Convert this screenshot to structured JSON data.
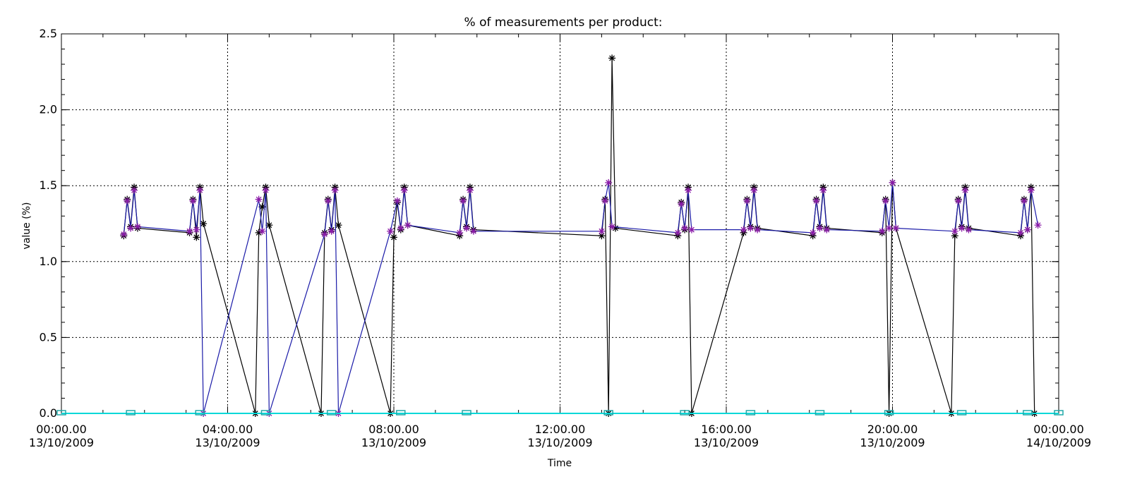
{
  "chart_data": {
    "type": "line",
    "title": "% of measurements per product:",
    "xlabel": "Time",
    "ylabel": "value (%)",
    "xlim": [
      "13/10/2009 00:00",
      "14/10/2009 00:00"
    ],
    "ylim": [
      0,
      2.5
    ],
    "grid": "dotted, at labelled ticks",
    "x_ticks": [
      {
        "time": "00:00.00",
        "date": "13/10/2009"
      },
      {
        "time": "04:00.00",
        "date": "13/10/2009"
      },
      {
        "time": "08:00.00",
        "date": "13/10/2009"
      },
      {
        "time": "12:00.00",
        "date": "13/10/2009"
      },
      {
        "time": "16:00.00",
        "date": "13/10/2009"
      },
      {
        "time": "20:00.00",
        "date": "13/10/2009"
      },
      {
        "time": "00:00.00",
        "date": "14/10/2009"
      }
    ],
    "y_ticks": [
      "0.0",
      "0.5",
      "1.0",
      "1.5",
      "2.0",
      "2.5"
    ],
    "series": [
      {
        "color": "#000000",
        "marker": "asterisk",
        "points": [
          [
            "13/10/2009 01:30",
            1.17
          ],
          [
            "13/10/2009 01:35",
            1.41
          ],
          [
            "13/10/2009 01:40",
            1.23
          ],
          [
            "13/10/2009 01:45",
            1.49
          ],
          [
            "13/10/2009 01:50",
            1.22
          ],
          [
            "13/10/2009 03:05",
            1.19
          ],
          [
            "13/10/2009 03:10",
            1.41
          ],
          [
            "13/10/2009 03:15",
            1.16
          ],
          [
            "13/10/2009 03:20",
            1.49
          ],
          [
            "13/10/2009 03:25",
            1.25
          ],
          [
            "13/10/2009 04:40",
            0.0
          ],
          [
            "13/10/2009 04:45",
            1.19
          ],
          [
            "13/10/2009 04:50",
            1.36
          ],
          [
            "13/10/2009 04:55",
            1.49
          ],
          [
            "13/10/2009 05:00",
            1.24
          ],
          [
            "13/10/2009 06:15",
            0.0
          ],
          [
            "13/10/2009 06:20",
            1.19
          ],
          [
            "13/10/2009 06:25",
            1.41
          ],
          [
            "13/10/2009 06:30",
            1.21
          ],
          [
            "13/10/2009 06:35",
            1.49
          ],
          [
            "13/10/2009 06:40",
            1.24
          ],
          [
            "13/10/2009 07:55",
            0.0
          ],
          [
            "13/10/2009 08:00",
            1.16
          ],
          [
            "13/10/2009 08:05",
            1.39
          ],
          [
            "13/10/2009 08:10",
            1.21
          ],
          [
            "13/10/2009 08:15",
            1.49
          ],
          [
            "13/10/2009 08:20",
            1.24
          ],
          [
            "13/10/2009 09:35",
            1.17
          ],
          [
            "13/10/2009 09:40",
            1.41
          ],
          [
            "13/10/2009 09:45",
            1.23
          ],
          [
            "13/10/2009 09:50",
            1.49
          ],
          [
            "13/10/2009 09:55",
            1.21
          ],
          [
            "13/10/2009 13:00",
            1.17
          ],
          [
            "13/10/2009 13:05",
            1.41
          ],
          [
            "13/10/2009 13:10",
            0.0
          ],
          [
            "13/10/2009 13:15",
            2.34
          ],
          [
            "13/10/2009 13:20",
            1.22
          ],
          [
            "13/10/2009 14:50",
            1.17
          ],
          [
            "13/10/2009 14:55",
            1.39
          ],
          [
            "13/10/2009 15:00",
            1.21
          ],
          [
            "13/10/2009 15:05",
            1.49
          ],
          [
            "13/10/2009 15:10",
            0.0
          ],
          [
            "13/10/2009 16:25",
            1.19
          ],
          [
            "13/10/2009 16:30",
            1.41
          ],
          [
            "13/10/2009 16:35",
            1.23
          ],
          [
            "13/10/2009 16:40",
            1.49
          ],
          [
            "13/10/2009 16:45",
            1.22
          ],
          [
            "13/10/2009 18:05",
            1.17
          ],
          [
            "13/10/2009 18:10",
            1.41
          ],
          [
            "13/10/2009 18:15",
            1.23
          ],
          [
            "13/10/2009 18:20",
            1.49
          ],
          [
            "13/10/2009 18:25",
            1.22
          ],
          [
            "13/10/2009 19:45",
            1.19
          ],
          [
            "13/10/2009 19:50",
            1.41
          ],
          [
            "13/10/2009 19:55",
            0.0
          ],
          [
            "13/10/2009 20:00",
            1.52
          ],
          [
            "13/10/2009 20:05",
            1.22
          ],
          [
            "13/10/2009 21:25",
            0.0
          ],
          [
            "13/10/2009 21:30",
            1.17
          ],
          [
            "13/10/2009 21:35",
            1.41
          ],
          [
            "13/10/2009 21:40",
            1.23
          ],
          [
            "13/10/2009 21:45",
            1.49
          ],
          [
            "13/10/2009 21:50",
            1.22
          ],
          [
            "13/10/2009 23:05",
            1.17
          ],
          [
            "13/10/2009 23:10",
            1.41
          ],
          [
            "13/10/2009 23:15",
            1.21
          ],
          [
            "13/10/2009 23:20",
            1.49
          ],
          [
            "13/10/2009 23:25",
            0.0
          ]
        ]
      },
      {
        "color": "#1a1aa8",
        "marker": "asterisk",
        "marker_color": "#8a1aa8",
        "points": [
          [
            "13/10/2009 01:30",
            1.18
          ],
          [
            "13/10/2009 01:35",
            1.4
          ],
          [
            "13/10/2009 01:40",
            1.22
          ],
          [
            "13/10/2009 01:45",
            1.47
          ],
          [
            "13/10/2009 01:50",
            1.23
          ],
          [
            "13/10/2009 03:05",
            1.2
          ],
          [
            "13/10/2009 03:10",
            1.4
          ],
          [
            "13/10/2009 03:15",
            1.21
          ],
          [
            "13/10/2009 03:20",
            1.47
          ],
          [
            "13/10/2009 03:25",
            0.0
          ],
          [
            "13/10/2009 04:45",
            1.41
          ],
          [
            "13/10/2009 04:50",
            1.2
          ],
          [
            "13/10/2009 04:55",
            1.47
          ],
          [
            "13/10/2009 05:00",
            0.0
          ],
          [
            "13/10/2009 06:20",
            1.18
          ],
          [
            "13/10/2009 06:25",
            1.4
          ],
          [
            "13/10/2009 06:30",
            1.2
          ],
          [
            "13/10/2009 06:35",
            1.47
          ],
          [
            "13/10/2009 06:40",
            0.0
          ],
          [
            "13/10/2009 07:55",
            1.2
          ],
          [
            "13/10/2009 08:05",
            1.4
          ],
          [
            "13/10/2009 08:10",
            1.22
          ],
          [
            "13/10/2009 08:15",
            1.47
          ],
          [
            "13/10/2009 08:20",
            1.24
          ],
          [
            "13/10/2009 09:35",
            1.19
          ],
          [
            "13/10/2009 09:40",
            1.4
          ],
          [
            "13/10/2009 09:45",
            1.22
          ],
          [
            "13/10/2009 09:50",
            1.47
          ],
          [
            "13/10/2009 09:55",
            1.2
          ],
          [
            "13/10/2009 13:00",
            1.2
          ],
          [
            "13/10/2009 13:05",
            1.4
          ],
          [
            "13/10/2009 13:10",
            1.52
          ],
          [
            "13/10/2009 13:15",
            1.23
          ],
          [
            "13/10/2009 14:50",
            1.19
          ],
          [
            "13/10/2009 14:55",
            1.38
          ],
          [
            "13/10/2009 15:00",
            1.22
          ],
          [
            "13/10/2009 15:05",
            1.47
          ],
          [
            "13/10/2009 15:10",
            1.21
          ],
          [
            "13/10/2009 16:25",
            1.21
          ],
          [
            "13/10/2009 16:30",
            1.4
          ],
          [
            "13/10/2009 16:35",
            1.22
          ],
          [
            "13/10/2009 16:40",
            1.47
          ],
          [
            "13/10/2009 16:45",
            1.21
          ],
          [
            "13/10/2009 18:05",
            1.19
          ],
          [
            "13/10/2009 18:10",
            1.4
          ],
          [
            "13/10/2009 18:15",
            1.22
          ],
          [
            "13/10/2009 18:20",
            1.47
          ],
          [
            "13/10/2009 18:25",
            1.21
          ],
          [
            "13/10/2009 19:45",
            1.2
          ],
          [
            "13/10/2009 19:50",
            1.4
          ],
          [
            "13/10/2009 19:55",
            1.22
          ],
          [
            "13/10/2009 20:00",
            1.52
          ],
          [
            "13/10/2009 20:05",
            1.22
          ],
          [
            "13/10/2009 21:30",
            1.2
          ],
          [
            "13/10/2009 21:35",
            1.4
          ],
          [
            "13/10/2009 21:40",
            1.22
          ],
          [
            "13/10/2009 21:45",
            1.47
          ],
          [
            "13/10/2009 21:50",
            1.21
          ],
          [
            "13/10/2009 23:05",
            1.19
          ],
          [
            "13/10/2009 23:10",
            1.4
          ],
          [
            "13/10/2009 23:15",
            1.21
          ],
          [
            "13/10/2009 23:20",
            1.47
          ],
          [
            "13/10/2009 23:30",
            1.24
          ]
        ]
      },
      {
        "color": "#00d8d8",
        "marker": "square",
        "marker_color": "#20a8a8",
        "points": [
          [
            "13/10/2009 00:00",
            0.0
          ],
          [
            "13/10/2009 01:40",
            0.0
          ],
          [
            "13/10/2009 03:20",
            0.0
          ],
          [
            "13/10/2009 04:55",
            0.0
          ],
          [
            "13/10/2009 06:30",
            0.0
          ],
          [
            "13/10/2009 08:10",
            0.0
          ],
          [
            "13/10/2009 09:45",
            0.0
          ],
          [
            "13/10/2009 13:10",
            0.0
          ],
          [
            "13/10/2009 15:00",
            0.0
          ],
          [
            "13/10/2009 16:35",
            0.0
          ],
          [
            "13/10/2009 18:15",
            0.0
          ],
          [
            "13/10/2009 19:55",
            0.0
          ],
          [
            "13/10/2009 21:40",
            0.0
          ],
          [
            "13/10/2009 23:15",
            0.0
          ],
          [
            "14/10/2009 00:00",
            0.0
          ]
        ]
      }
    ]
  }
}
